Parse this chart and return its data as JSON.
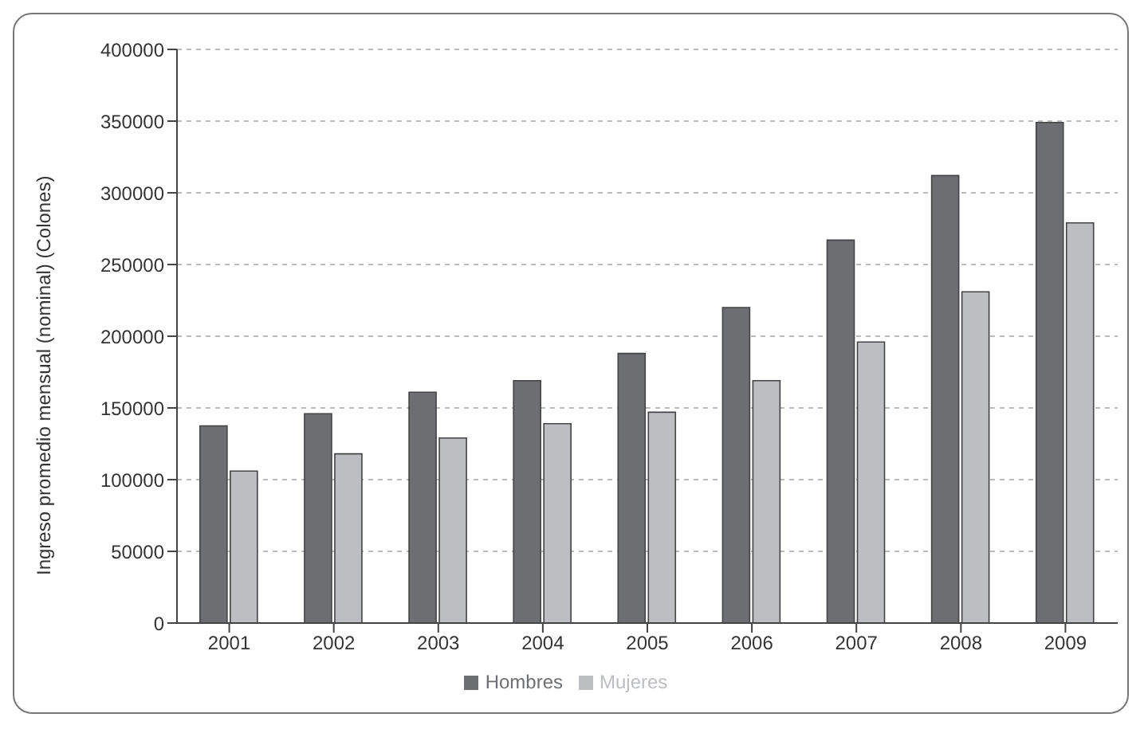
{
  "chart_data": {
    "type": "bar",
    "ylabel": "Ingreso promedio mensual (nominal) (Colones)",
    "categories": [
      "2001",
      "2002",
      "2003",
      "2004",
      "2005",
      "2006",
      "2007",
      "2008",
      "2009"
    ],
    "series": [
      {
        "name": "Hombres",
        "color": "#6d6e72",
        "values": [
          137500,
          146000,
          161000,
          169000,
          188000,
          220000,
          267000,
          312000,
          349000
        ]
      },
      {
        "name": "Mujeres",
        "color": "#bdbec2",
        "values": [
          106000,
          118000,
          129000,
          139000,
          147000,
          169000,
          196000,
          231000,
          279000
        ]
      }
    ],
    "ylim": [
      0,
      400000
    ],
    "yticks": [
      0,
      50000,
      100000,
      150000,
      200000,
      250000,
      300000,
      350000,
      400000
    ],
    "grid": "y",
    "legend": "bottom"
  }
}
